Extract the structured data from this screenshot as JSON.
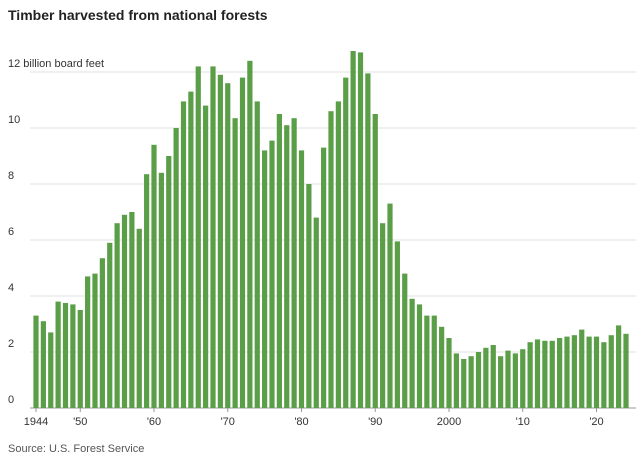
{
  "chart_data": {
    "type": "bar",
    "title": "Timber harvested from national forests",
    "source": "Source: U.S. Forest Service",
    "categories": [
      "1944",
      null,
      null,
      null,
      null,
      null,
      "'50",
      null,
      null,
      null,
      null,
      null,
      null,
      null,
      null,
      null,
      "'60",
      null,
      null,
      null,
      null,
      null,
      null,
      null,
      null,
      null,
      "'70",
      null,
      null,
      null,
      null,
      null,
      null,
      null,
      null,
      null,
      "'80",
      null,
      null,
      null,
      null,
      null,
      null,
      null,
      null,
      null,
      "'90",
      null,
      null,
      null,
      null,
      null,
      null,
      null,
      null,
      null,
      "2000",
      null,
      null,
      null,
      null,
      null,
      null,
      null,
      null,
      null,
      "'10",
      null,
      null,
      null,
      null,
      null,
      null,
      null,
      null,
      null,
      "'20",
      null,
      null,
      null,
      null
    ],
    "values": [
      3.3,
      3.1,
      2.7,
      3.8,
      3.75,
      3.7,
      3.5,
      4.7,
      4.8,
      5.35,
      5.9,
      6.6,
      6.9,
      7.0,
      6.4,
      8.35,
      9.4,
      8.4,
      9.0,
      10.0,
      10.95,
      11.3,
      12.2,
      10.8,
      12.2,
      11.9,
      11.6,
      10.35,
      11.8,
      12.4,
      10.95,
      9.2,
      9.55,
      10.5,
      10.1,
      10.35,
      9.2,
      8.0,
      6.8,
      9.3,
      10.6,
      10.95,
      11.8,
      12.75,
      12.7,
      11.95,
      10.5,
      6.6,
      7.3,
      5.95,
      4.8,
      3.9,
      3.7,
      3.3,
      3.3,
      2.9,
      2.5,
      1.95,
      1.75,
      1.85,
      2.0,
      2.15,
      2.25,
      1.85,
      2.05,
      1.95,
      2.1,
      2.35,
      2.45,
      2.4,
      2.4,
      2.5,
      2.55,
      2.6,
      2.8,
      2.55,
      2.55,
      2.35,
      2.6,
      2.95,
      2.65
    ],
    "color": "#5a9e47",
    "ylim": [
      0,
      13
    ],
    "yticks": [
      0,
      2,
      4,
      6,
      8,
      10,
      {
        "value": 12,
        "label": "12 billion board feet"
      }
    ],
    "grid": true
  }
}
